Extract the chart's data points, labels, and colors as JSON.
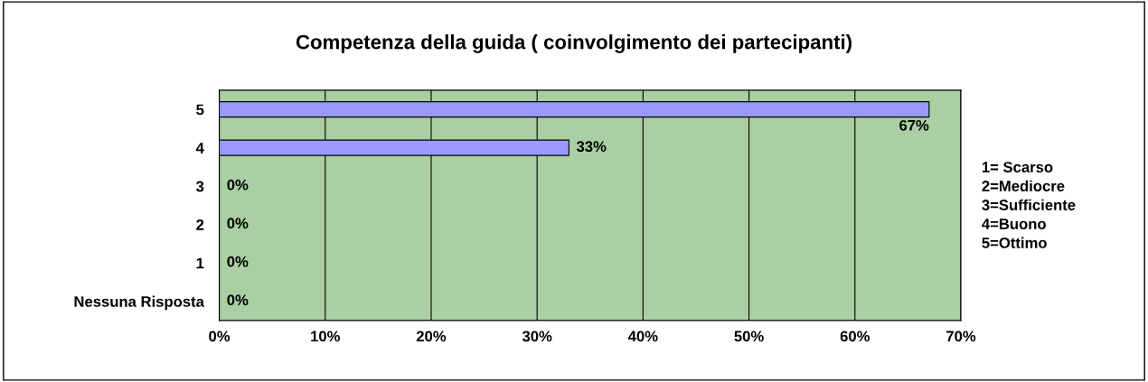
{
  "chart_data": {
    "type": "bar",
    "orientation": "horizontal",
    "title": "Competenza della guida ( coinvolgimento dei partecipanti)",
    "categories": [
      "5",
      "4",
      "3",
      "2",
      "1",
      "Nessuna Risposta"
    ],
    "values": [
      67,
      33,
      0,
      0,
      0,
      0
    ],
    "value_labels": [
      "67%",
      "33%",
      "0%",
      "0%",
      "0%",
      "0%"
    ],
    "color": "#9999ff",
    "xlim": [
      0,
      70
    ],
    "xticks": [
      {
        "value": 0,
        "label": "0%"
      },
      {
        "value": 10,
        "label": "10%"
      },
      {
        "value": 20,
        "label": "20%"
      },
      {
        "value": 30,
        "label": "30%"
      },
      {
        "value": 40,
        "label": "40%"
      },
      {
        "value": 50,
        "label": "50%"
      },
      {
        "value": 60,
        "label": "60%"
      },
      {
        "value": 70,
        "label": "70%"
      }
    ],
    "grid": "x",
    "annotations": [
      "1= Scarso\n2=Mediocre\n3=Sufficiente\n4=Buono\n5=Ottimo"
    ]
  }
}
